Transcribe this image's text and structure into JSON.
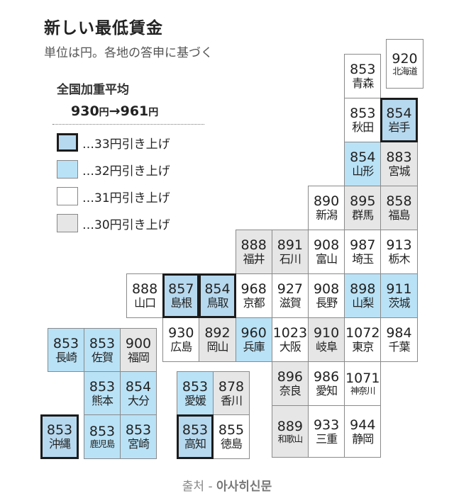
{
  "header": {
    "title": "新しい最低賃金",
    "subtitle": "単位は円。各地の答申に基づく"
  },
  "average": {
    "label": "全国加重平均",
    "from": "930",
    "to": "961",
    "unit": "円",
    "arrow": "→"
  },
  "legend": [
    {
      "tier": "33",
      "label": "…33円引き上げ",
      "fill": "#b7d9ef",
      "thick_border": true
    },
    {
      "tier": "32",
      "label": "…32円引き上げ",
      "fill": "#b9e2f6",
      "thick_border": false
    },
    {
      "tier": "31",
      "label": "…31円引き上げ",
      "fill": "#ffffff",
      "thick_border": false
    },
    {
      "tier": "30",
      "label": "…30円引き上げ",
      "fill": "#e6e6e6",
      "thick_border": false
    }
  ],
  "prefectures": [
    {
      "name": "北海道",
      "value": "920",
      "tier": "31"
    },
    {
      "name": "青森",
      "value": "853",
      "tier": "31"
    },
    {
      "name": "秋田",
      "value": "853",
      "tier": "31"
    },
    {
      "name": "岩手",
      "value": "854",
      "tier": "33"
    },
    {
      "name": "山形",
      "value": "854",
      "tier": "32"
    },
    {
      "name": "宮城",
      "value": "883",
      "tier": "30"
    },
    {
      "name": "新潟",
      "value": "890",
      "tier": "31"
    },
    {
      "name": "群馬",
      "value": "895",
      "tier": "30"
    },
    {
      "name": "福島",
      "value": "858",
      "tier": "30"
    },
    {
      "name": "福井",
      "value": "888",
      "tier": "30"
    },
    {
      "name": "石川",
      "value": "891",
      "tier": "30"
    },
    {
      "name": "富山",
      "value": "908",
      "tier": "31"
    },
    {
      "name": "埼玉",
      "value": "987",
      "tier": "31"
    },
    {
      "name": "栃木",
      "value": "913",
      "tier": "31"
    },
    {
      "name": "山口",
      "value": "888",
      "tier": "31"
    },
    {
      "name": "島根",
      "value": "857",
      "tier": "33"
    },
    {
      "name": "鳥取",
      "value": "854",
      "tier": "33"
    },
    {
      "name": "京都",
      "value": "968",
      "tier": "31"
    },
    {
      "name": "滋賀",
      "value": "927",
      "tier": "31"
    },
    {
      "name": "長野",
      "value": "908",
      "tier": "31"
    },
    {
      "name": "山梨",
      "value": "898",
      "tier": "32"
    },
    {
      "name": "茨城",
      "value": "911",
      "tier": "32"
    },
    {
      "name": "広島",
      "value": "930",
      "tier": "31"
    },
    {
      "name": "岡山",
      "value": "892",
      "tier": "30"
    },
    {
      "name": "兵庫",
      "value": "960",
      "tier": "32"
    },
    {
      "name": "大阪",
      "value": "1023",
      "tier": "31"
    },
    {
      "name": "岐阜",
      "value": "910",
      "tier": "30"
    },
    {
      "name": "東京",
      "value": "1072",
      "tier": "31"
    },
    {
      "name": "千葉",
      "value": "984",
      "tier": "31"
    },
    {
      "name": "奈良",
      "value": "896",
      "tier": "30"
    },
    {
      "name": "愛知",
      "value": "986",
      "tier": "31"
    },
    {
      "name": "神奈川",
      "value": "1071",
      "tier": "31"
    },
    {
      "name": "和歌山",
      "value": "889",
      "tier": "30"
    },
    {
      "name": "三重",
      "value": "933",
      "tier": "31"
    },
    {
      "name": "静岡",
      "value": "944",
      "tier": "31"
    },
    {
      "name": "長崎",
      "value": "853",
      "tier": "32"
    },
    {
      "name": "佐賀",
      "value": "853",
      "tier": "32"
    },
    {
      "name": "福岡",
      "value": "900",
      "tier": "30"
    },
    {
      "name": "熊本",
      "value": "853",
      "tier": "32"
    },
    {
      "name": "大分",
      "value": "854",
      "tier": "32"
    },
    {
      "name": "沖縄",
      "value": "853",
      "tier": "33"
    },
    {
      "name": "鹿児島",
      "value": "853",
      "tier": "32"
    },
    {
      "name": "宮崎",
      "value": "853",
      "tier": "32"
    },
    {
      "name": "愛媛",
      "value": "853",
      "tier": "32"
    },
    {
      "name": "香川",
      "value": "878",
      "tier": "30"
    },
    {
      "name": "高知",
      "value": "853",
      "tier": "33"
    },
    {
      "name": "徳島",
      "value": "855",
      "tier": "31"
    }
  ],
  "source": {
    "prefix": "출처 - ",
    "name": "아사히신문"
  }
}
